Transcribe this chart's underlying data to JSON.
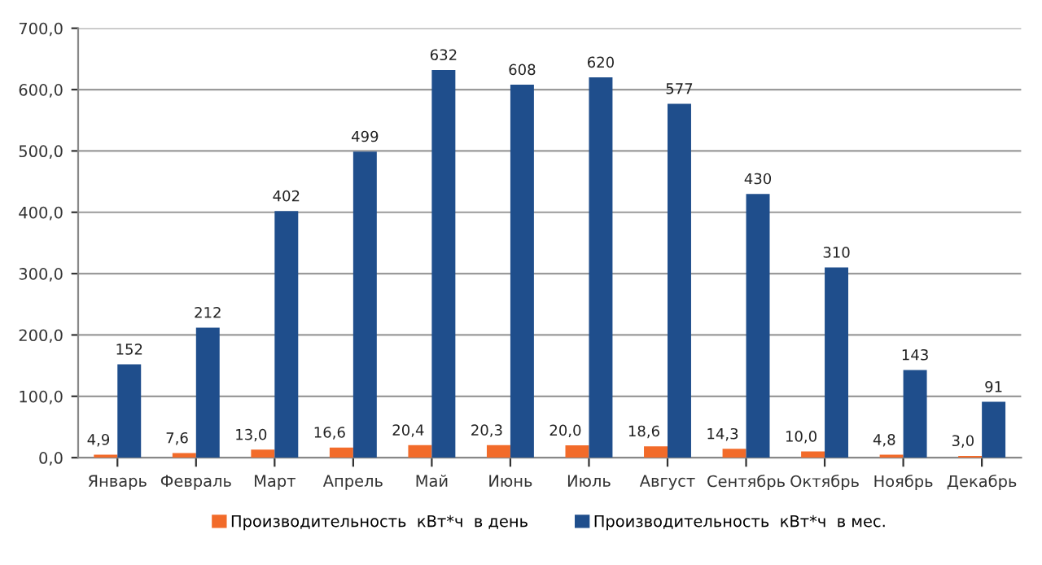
{
  "chart_data": {
    "type": "bar",
    "categories": [
      "Январь",
      "Февраль",
      "Март",
      "Апрель",
      "Май",
      "Июнь",
      "Июль",
      "Август",
      "Сентябрь",
      "Октябрь",
      "Ноябрь",
      "Декабрь"
    ],
    "series": [
      {
        "name": "Производительность  кВт*ч  в день",
        "color": "#f26b2a",
        "values": [
          4.9,
          7.6,
          13.0,
          16.6,
          20.4,
          20.3,
          20.0,
          18.6,
          14.3,
          10.0,
          4.8,
          3.0
        ],
        "value_labels": [
          "4,9",
          "7,6",
          "13,0",
          "16,6",
          "20,4",
          "20,3",
          "20,0",
          "18,6",
          "14,3",
          "10,0",
          "4,8",
          "3,0"
        ]
      },
      {
        "name": "Производительность  кВт*ч  в мес.",
        "color": "#1f4e8c",
        "values": [
          152,
          212,
          402,
          499,
          632,
          608,
          620,
          577,
          430,
          310,
          143,
          91
        ],
        "value_labels": [
          "152",
          "212",
          "402",
          "499",
          "632",
          "608",
          "620",
          "577",
          "430",
          "310",
          "143",
          "91"
        ]
      }
    ],
    "ylim": [
      0,
      700
    ],
    "yticks": [
      {
        "value": 0,
        "label": "0,0"
      },
      {
        "value": 100,
        "label": "100,0"
      },
      {
        "value": 200,
        "label": "200,0"
      },
      {
        "value": 300,
        "label": "300,0"
      },
      {
        "value": 400,
        "label": "400,0"
      },
      {
        "value": 500,
        "label": "500,0"
      },
      {
        "value": 600,
        "label": "600,0"
      },
      {
        "value": 700,
        "label": "700,0"
      }
    ],
    "grid": "y",
    "legend": "bottom"
  }
}
